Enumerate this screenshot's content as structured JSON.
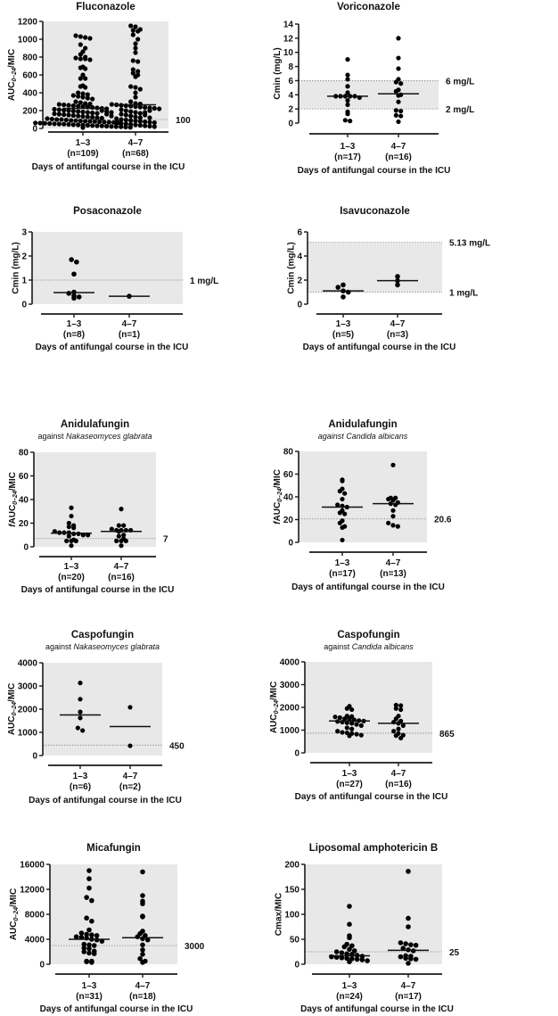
{
  "colors": {
    "shade": "#e8e8e8",
    "dot": "#000000",
    "axis": "#1a1a1a",
    "threshold": "#888888"
  },
  "chart_data": [
    {
      "type": "scatter",
      "title": "Fluconazole",
      "subtitle": null,
      "ylabel": [
        {
          "t": "AUC"
        },
        {
          "t": "0–24",
          "sub": true
        },
        {
          "t": "/MIC"
        }
      ],
      "ylim": [
        0,
        1200
      ],
      "yticks": [
        0,
        200,
        400,
        600,
        800,
        1000,
        1200
      ],
      "shade": [
        0,
        1200
      ],
      "thresholds": [
        {
          "value": 100,
          "label": "100"
        }
      ],
      "xlabel": "Days of antifungal course in the ICU",
      "categories": [
        {
          "label": "1–3",
          "n": "(n=109)",
          "median": 225,
          "values": [
            1040,
            1030,
            1020,
            1010,
            940,
            900,
            860,
            830,
            800,
            790,
            780,
            780,
            770,
            690,
            680,
            670,
            600,
            560,
            560,
            480,
            470,
            460,
            400,
            390,
            380,
            370,
            360,
            350,
            340,
            330,
            300,
            290,
            280,
            275,
            270,
            265,
            260,
            255,
            250,
            245,
            240,
            235,
            230,
            225,
            220,
            215,
            210,
            205,
            200,
            195,
            190,
            185,
            180,
            175,
            170,
            165,
            160,
            155,
            150,
            145,
            140,
            135,
            130,
            125,
            120,
            115,
            110,
            105,
            100,
            100,
            95,
            90,
            88,
            85,
            82,
            80,
            78,
            75,
            72,
            70,
            68,
            65,
            62,
            60,
            58,
            55,
            52,
            50,
            48,
            45,
            42,
            40,
            38,
            35,
            32,
            30,
            28,
            25,
            22,
            20,
            18,
            15,
            12,
            10,
            200,
            190,
            180,
            160,
            140
          ]
        },
        {
          "label": "4–7",
          "n": "(n=68)",
          "median": 265,
          "values": [
            1150,
            1140,
            1110,
            1100,
            1090,
            1050,
            1000,
            950,
            900,
            850,
            760,
            750,
            660,
            640,
            620,
            600,
            580,
            470,
            460,
            440,
            400,
            350,
            300,
            280,
            275,
            270,
            265,
            260,
            255,
            250,
            245,
            240,
            235,
            230,
            225,
            220,
            210,
            200,
            190,
            180,
            170,
            160,
            150,
            140,
            130,
            120,
            110,
            100,
            95,
            90,
            85,
            80,
            75,
            70,
            65,
            60,
            55,
            50,
            45,
            40,
            35,
            30,
            25,
            20,
            180,
            150,
            120,
            200
          ]
        }
      ]
    },
    {
      "type": "scatter",
      "title": "Voriconazole",
      "subtitle": null,
      "ylabel": [
        {
          "t": "Cmin (mg/L)"
        }
      ],
      "ylim": [
        0,
        14
      ],
      "yticks": [
        0,
        2,
        4,
        6,
        8,
        10,
        12,
        14
      ],
      "shade": [
        2,
        6
      ],
      "thresholds": [
        {
          "value": 6,
          "label": "6 mg/L"
        },
        {
          "value": 2,
          "label": "2 mg/L"
        }
      ],
      "xlabel": "Days of antifungal course in the ICU",
      "categories": [
        {
          "label": "1–3",
          "n": "(n=17)",
          "median": 3.8,
          "values": [
            9.0,
            6.8,
            6.2,
            5.2,
            4.3,
            3.8,
            3.8,
            3.8,
            3.8,
            3.8,
            3.6,
            3.2,
            2.6,
            1.6,
            1.3,
            0.4,
            0.3
          ]
        },
        {
          "label": "4–7",
          "n": "(n=16)",
          "median": 4.15,
          "values": [
            12.0,
            9.2,
            7.7,
            6.2,
            5.8,
            5.6,
            4.7,
            4.5,
            4.0,
            3.9,
            3.0,
            1.8,
            1.7,
            1.1,
            1.0,
            0.2
          ]
        }
      ]
    },
    {
      "type": "scatter",
      "title": "Posaconazole",
      "subtitle": null,
      "ylabel": [
        {
          "t": "Cmin (mg/L)"
        }
      ],
      "ylim": [
        0,
        3
      ],
      "yticks": [
        0,
        1,
        2,
        3
      ],
      "shade": [
        0,
        3
      ],
      "thresholds": [
        {
          "value": 1,
          "label": "1 mg/L"
        }
      ],
      "xlabel": "Days of antifungal course in the ICU",
      "categories": [
        {
          "label": "1–3",
          "n": "(n=8)",
          "median": 0.48,
          "values": [
            1.85,
            1.75,
            1.25,
            0.5,
            0.45,
            0.35,
            0.3,
            0.25
          ]
        },
        {
          "label": "4–7",
          "n": "(n=1)",
          "median": 0.33,
          "values": [
            0.33
          ]
        }
      ]
    },
    {
      "type": "scatter",
      "title": "Isavuconazole",
      "subtitle": null,
      "ylabel": [
        {
          "t": "Cmin (mg/L)"
        }
      ],
      "ylim": [
        0,
        6
      ],
      "yticks": [
        0,
        2,
        4,
        6
      ],
      "shade": [
        1,
        5.13
      ],
      "thresholds": [
        {
          "value": 5.13,
          "label": "5.13 mg/L"
        },
        {
          "value": 1,
          "label": "1 mg/L"
        }
      ],
      "xlabel": "Days of antifungal course in the ICU",
      "categories": [
        {
          "label": "1–3",
          "n": "(n=5)",
          "median": 1.1,
          "values": [
            1.6,
            1.4,
            1.1,
            1.0,
            0.6
          ]
        },
        {
          "label": "4–7",
          "n": "(n=3)",
          "median": 1.95,
          "values": [
            2.3,
            1.95,
            1.6
          ]
        }
      ]
    },
    {
      "type": "scatter",
      "title": "Anidulafungin",
      "subtitle": {
        "prefix": "against ",
        "italic": "Nakaseomyces glabrata"
      },
      "ylabel": [
        {
          "t": "f",
          "it": true
        },
        {
          "t": "AUC"
        },
        {
          "t": "0–24",
          "sub": true
        },
        {
          "t": "/MIC"
        }
      ],
      "ylim": [
        0,
        80
      ],
      "yticks": [
        0,
        20,
        40,
        60,
        80
      ],
      "shade": [
        0,
        80
      ],
      "thresholds": [
        {
          "value": 7,
          "label": "7"
        }
      ],
      "xlabel": "Days of antifungal course in the ICU",
      "categories": [
        {
          "label": "1–3",
          "n": "(n=20)",
          "median": 11.5,
          "values": [
            33,
            26,
            20,
            18,
            17,
            16,
            13,
            12,
            12,
            12,
            11,
            11,
            10,
            10,
            9,
            6,
            5,
            5,
            5,
            1
          ]
        },
        {
          "label": "4–7",
          "n": "(n=16)",
          "median": 13,
          "values": [
            32,
            18,
            18,
            15,
            14,
            14,
            14,
            14,
            13,
            10,
            9,
            7,
            5,
            5,
            5,
            1
          ]
        }
      ]
    },
    {
      "type": "scatter",
      "title": "Anidulafungin",
      "subtitle": {
        "prefix": "",
        "italic": "against Candida albicans"
      },
      "ylabel": [
        {
          "t": "f",
          "it": true
        },
        {
          "t": "AUC"
        },
        {
          "t": "0–24",
          "sub": true
        },
        {
          "t": "/MIC"
        }
      ],
      "ylim": [
        0,
        80
      ],
      "yticks": [
        0,
        20,
        40,
        60,
        80
      ],
      "shade": [
        0,
        80
      ],
      "thresholds": [
        {
          "value": 20.6,
          "label": "20.6"
        }
      ],
      "xlabel": "Days of antifungal course in the ICU",
      "categories": [
        {
          "label": "1–3",
          "n": "(n=17)",
          "median": 31,
          "values": [
            55,
            54,
            47,
            45,
            43,
            38,
            33,
            32,
            31,
            28,
            26,
            25,
            19,
            17,
            14,
            13,
            2
          ]
        },
        {
          "label": "4–7",
          "n": "(n=13)",
          "median": 34,
          "values": [
            68,
            39,
            39,
            38,
            37,
            35,
            34,
            33,
            28,
            23,
            17,
            15,
            14
          ]
        }
      ]
    },
    {
      "type": "scatter",
      "title": "Caspofungin",
      "subtitle": {
        "prefix": "against ",
        "italic": "Nakaseomyces glabrata"
      },
      "ylabel": [
        {
          "t": "AUC"
        },
        {
          "t": "0–24",
          "sub": true
        },
        {
          "t": "/MIC"
        }
      ],
      "ylim": [
        0,
        4000
      ],
      "yticks": [
        0,
        1000,
        2000,
        3000,
        4000
      ],
      "shade": [
        0,
        4000
      ],
      "thresholds": [
        {
          "value": 450,
          "label": "450"
        }
      ],
      "xlabel": "Days of antifungal course in the ICU",
      "categories": [
        {
          "label": "1–3",
          "n": "(n=6)",
          "median": 1750,
          "values": [
            3130,
            2430,
            1880,
            1620,
            1190,
            1080
          ]
        },
        {
          "label": "4–7",
          "n": "(n=2)",
          "median": 1250,
          "values": [
            2080,
            420
          ]
        }
      ]
    },
    {
      "type": "scatter",
      "title": "Caspofungin",
      "subtitle": {
        "prefix": "against ",
        "italic": "Candida albicans"
      },
      "ylabel": [
        {
          "t": "AUC"
        },
        {
          "t": "0–24",
          "sub": true
        },
        {
          "t": "/MIC"
        }
      ],
      "ylim": [
        0,
        4000
      ],
      "yticks": [
        0,
        1000,
        2000,
        3000,
        4000
      ],
      "shade": [
        0,
        4000
      ],
      "thresholds": [
        {
          "value": 865,
          "label": "865"
        }
      ],
      "xlabel": "Days of antifungal course in the ICU",
      "categories": [
        {
          "label": "1–3",
          "n": "(n=27)",
          "median": 1400,
          "values": [
            2050,
            1950,
            1900,
            1620,
            1600,
            1580,
            1550,
            1500,
            1480,
            1450,
            1420,
            1400,
            1380,
            1350,
            1320,
            1300,
            1250,
            1200,
            1100,
            1050,
            950,
            900,
            880,
            850,
            820,
            780,
            750
          ]
        },
        {
          "label": "4–7",
          "n": "(n=16)",
          "median": 1300,
          "values": [
            2100,
            2080,
            1950,
            1900,
            1620,
            1500,
            1400,
            1350,
            1300,
            1200,
            1050,
            950,
            850,
            780,
            760,
            650
          ]
        }
      ]
    },
    {
      "type": "scatter",
      "title": "Micafungin",
      "subtitle": null,
      "ylabel": [
        {
          "t": "AUC"
        },
        {
          "t": "0–24",
          "sub": true
        },
        {
          "t": "/MIC"
        }
      ],
      "ylim": [
        0,
        16000
      ],
      "yticks": [
        0,
        4000,
        8000,
        12000,
        16000
      ],
      "shade": [
        0,
        16000
      ],
      "thresholds": [
        {
          "value": 3000,
          "label": "3000"
        }
      ],
      "xlabel": "Days of antifungal course in the ICU",
      "categories": [
        {
          "label": "1–3",
          "n": "(n=31)",
          "median": 4000,
          "values": [
            15000,
            13700,
            12200,
            10700,
            10200,
            7400,
            6900,
            5500,
            5000,
            4800,
            4700,
            4600,
            4400,
            4300,
            4200,
            4000,
            3900,
            3700,
            3200,
            3100,
            3000,
            2600,
            2500,
            2100,
            2000,
            1800,
            1700,
            500,
            500,
            400,
            300
          ]
        },
        {
          "label": "4–7",
          "n": "(n=18)",
          "median": 4250,
          "values": [
            14800,
            11000,
            10100,
            9700,
            7700,
            7600,
            5300,
            4900,
            4600,
            4400,
            4100,
            3900,
            3100,
            2300,
            1600,
            900,
            500,
            300
          ]
        }
      ]
    },
    {
      "type": "scatter",
      "title": "Liposomal amphotericin B",
      "subtitle": null,
      "ylabel": [
        {
          "t": "Cmax/MIC"
        }
      ],
      "ylim": [
        0,
        200
      ],
      "yticks": [
        0,
        50,
        100,
        150,
        200
      ],
      "shade": [
        0,
        200
      ],
      "thresholds": [
        {
          "value": 25,
          "label": "25"
        }
      ],
      "xlabel": "Days of antifungal course in the ICU",
      "categories": [
        {
          "label": "1–3",
          "n": "(n=24)",
          "median": 17,
          "values": [
            116,
            80,
            57,
            53,
            40,
            37,
            35,
            30,
            27,
            25,
            23,
            21,
            20,
            18,
            16,
            15,
            14,
            13,
            12,
            11,
            10,
            9,
            7,
            5
          ]
        },
        {
          "label": "4–7",
          "n": "(n=17)",
          "median": 28,
          "values": [
            186,
            92,
            75,
            43,
            41,
            39,
            38,
            32,
            29,
            27,
            17,
            16,
            15,
            12,
            11,
            10,
            2
          ]
        }
      ]
    }
  ]
}
